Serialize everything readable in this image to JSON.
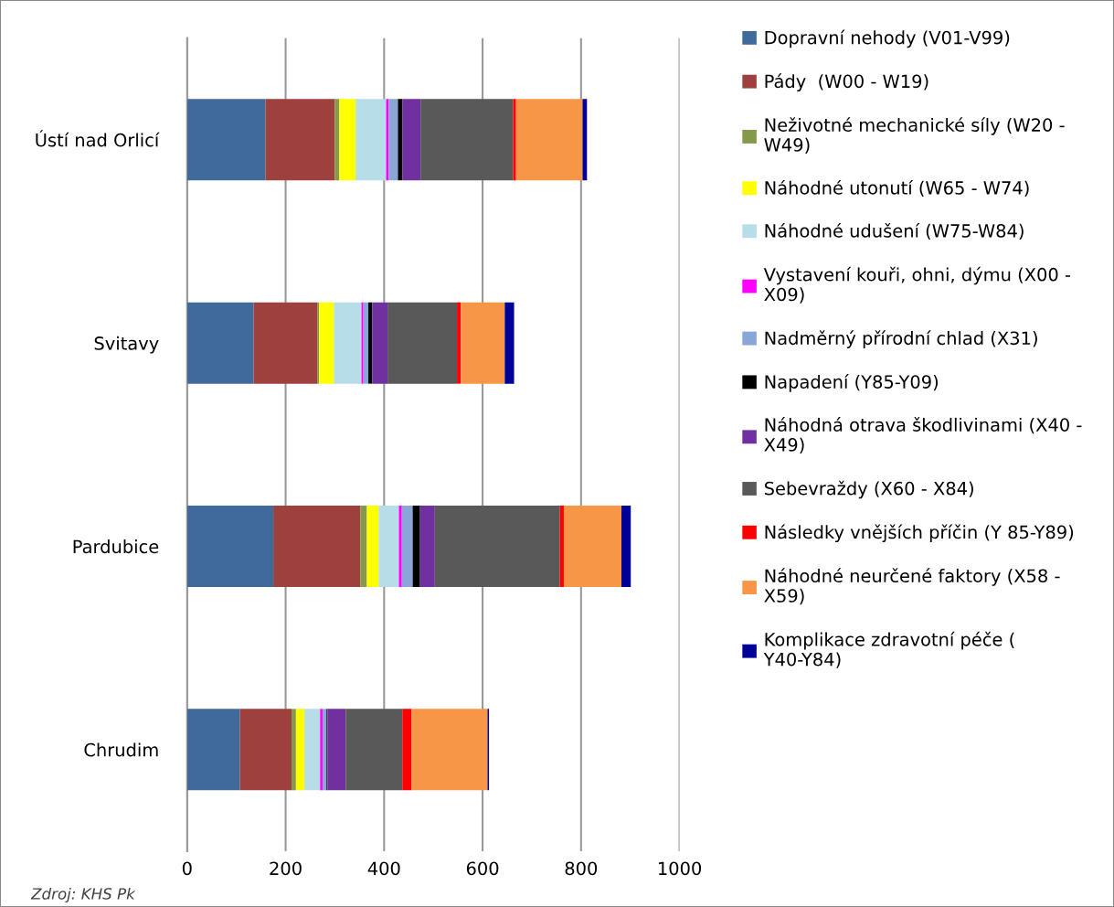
{
  "chart_data": {
    "type": "bar",
    "orientation": "horizontal",
    "stacked": true,
    "categories": [
      "Ústí nad Orlicí",
      "Svitavy",
      "Pardubice",
      "Chrudim"
    ],
    "series": [
      {
        "name": "Dopravní nehody (V01-V99)",
        "color": "#416a9c",
        "values": [
          159,
          135,
          175,
          107
        ]
      },
      {
        "name": "Pády  (W00 - W19)",
        "color": "#9e413e",
        "values": [
          141,
          130,
          177,
          105
        ]
      },
      {
        "name": "Neživotné mechanické síly (W20 - W49)",
        "color": "#84994a",
        "values": [
          9,
          3,
          13,
          9
        ]
      },
      {
        "name": "Náhodné utonutí (W65 - W74)",
        "color": "#ffff00",
        "values": [
          33,
          30,
          24,
          17
        ]
      },
      {
        "name": "Náhodné udušení (W75-W84)",
        "color": "#b7dde8",
        "values": [
          62,
          56,
          41,
          32
        ]
      },
      {
        "name": "Vystavení kouři, ohni, dýmu (X00 - X09)",
        "color": "#ff00ff",
        "values": [
          5,
          4,
          6,
          5
        ]
      },
      {
        "name": "Nadměrný přírodní chlad (X31)",
        "color": "#8aa6d8",
        "values": [
          19,
          10,
          22,
          8
        ]
      },
      {
        "name": "Napadení (Y85-Y09)",
        "color": "#000000",
        "values": [
          9,
          8,
          15,
          2
        ]
      },
      {
        "name": "Náhodná otrava škodlivinami (X40 - X49)",
        "color": "#7030a0",
        "values": [
          37,
          31,
          30,
          37
        ]
      },
      {
        "name": "Sebevraždy (X60 - X84)",
        "color": "#595959",
        "values": [
          188,
          141,
          254,
          115
        ]
      },
      {
        "name": "Následky vnějších příčin (Y 85-Y89)",
        "color": "#ff0000",
        "values": [
          6,
          8,
          8,
          19
        ]
      },
      {
        "name": "Náhodné neurčené faktory (X58 - X59)",
        "color": "#f79646",
        "values": [
          135,
          89,
          117,
          154
        ]
      },
      {
        "name": "Komplikace zdravotní péče ( Y40-Y84)",
        "color": "#000099",
        "values": [
          9,
          19,
          19,
          3
        ]
      }
    ],
    "xlim": [
      0,
      1000
    ],
    "xticks": [
      0,
      200,
      400,
      600,
      800,
      1000
    ],
    "grid": "x",
    "legend": "right",
    "annotations": [
      "Zdroj: KHS Pk"
    ]
  }
}
